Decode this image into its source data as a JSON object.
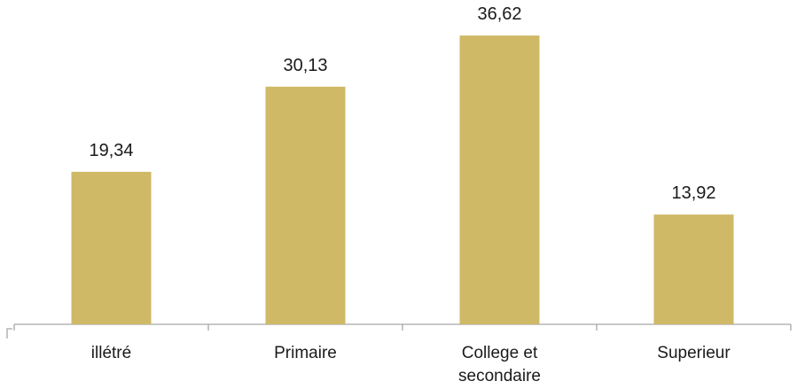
{
  "chart_data": {
    "type": "bar",
    "categories": [
      "illétré",
      "Primaire",
      "College et secondaire",
      "Superieur"
    ],
    "category_lines": [
      [
        "illétré"
      ],
      [
        "Primaire"
      ],
      [
        "College et",
        "secondaire"
      ],
      [
        "Superieur"
      ]
    ],
    "values": [
      19.34,
      30.13,
      36.62,
      13.92
    ],
    "data_labels": [
      "19,34",
      "30,13",
      "36,62",
      "13,92"
    ],
    "title": "",
    "xlabel": "",
    "ylabel": "",
    "ylim": [
      0,
      40
    ],
    "grid": false,
    "legend": "none",
    "bar_color": "#cfb966",
    "axis_color": "#a6a6a6"
  }
}
